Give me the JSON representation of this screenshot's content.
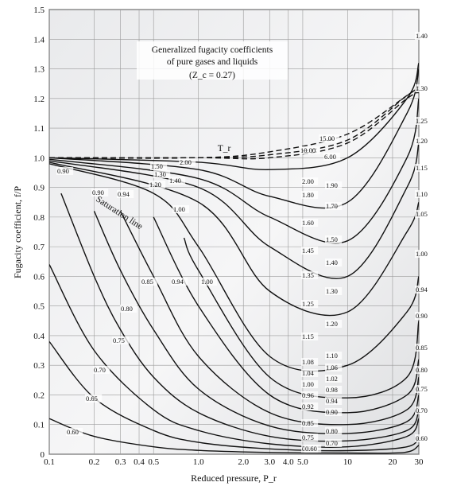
{
  "chart_data": {
    "type": "line",
    "title": "Generalized fugacity coefficients",
    "subtitle_line": "of pure gases and liquids",
    "zc_note": "(Z_c = 0.27)",
    "xlabel": "Reduced pressure, P_r",
    "ylabel": "Fugacity coefficient, f/P",
    "x_scale": "log",
    "xlim": [
      0.1,
      30
    ],
    "ylim": [
      0,
      1.5
    ],
    "grid": true,
    "x_ticks": [
      {
        "v": 0.1,
        "label": "0.1"
      },
      {
        "v": 0.2,
        "label": "0.2"
      },
      {
        "v": 0.3,
        "label": "0.3"
      },
      {
        "v": 0.4,
        "label": "0.4"
      },
      {
        "v": 0.5,
        "label": "0.5"
      },
      {
        "v": 1.0,
        "label": "1.0"
      },
      {
        "v": 2.0,
        "label": "2.0"
      },
      {
        "v": 3.0,
        "label": "3.0"
      },
      {
        "v": 4.0,
        "label": "4.0"
      },
      {
        "v": 5.0,
        "label": "5.0"
      },
      {
        "v": 10,
        "label": "10"
      },
      {
        "v": 20,
        "label": "20"
      },
      {
        "v": 30,
        "label": "30"
      }
    ],
    "y_ticks": [
      {
        "v": 0.0,
        "label": "0"
      },
      {
        "v": 0.1,
        "label": "0.1"
      },
      {
        "v": 0.2,
        "label": "0.2"
      },
      {
        "v": 0.3,
        "label": "0.3"
      },
      {
        "v": 0.4,
        "label": "0.4"
      },
      {
        "v": 0.5,
        "label": "0.5"
      },
      {
        "v": 0.6,
        "label": "0.6"
      },
      {
        "v": 0.7,
        "label": "0.7"
      },
      {
        "v": 0.8,
        "label": "0.8"
      },
      {
        "v": 0.9,
        "label": "0.9"
      },
      {
        "v": 1.0,
        "label": "1.0"
      },
      {
        "v": 1.1,
        "label": "1.1"
      },
      {
        "v": 1.2,
        "label": "1.2"
      },
      {
        "v": 1.3,
        "label": "1.3"
      },
      {
        "v": 1.4,
        "label": "1.4"
      },
      {
        "v": 1.5,
        "label": "1.5"
      }
    ],
    "annotations": {
      "tr_label": "T_r",
      "saturation_label": "Saturation line"
    },
    "series": [
      {
        "name": "0.60",
        "points": [
          [
            0.1,
            0.12
          ],
          [
            0.2,
            0.06
          ],
          [
            0.5,
            0.025
          ],
          [
            1,
            0.013
          ],
          [
            3,
            0.006
          ],
          [
            10,
            0.004
          ],
          [
            24,
            0.006
          ],
          [
            30,
            0.03
          ]
        ]
      },
      {
        "name": "0.65",
        "points": [
          [
            0.1,
            0.38
          ],
          [
            0.2,
            0.19
          ],
          [
            0.5,
            0.08
          ],
          [
            1,
            0.04
          ],
          [
            3,
            0.018
          ],
          [
            10,
            0.012
          ],
          [
            25,
            0.025
          ],
          [
            30,
            0.06
          ]
        ]
      },
      {
        "name": "0.70",
        "points": [
          [
            0.1,
            0.64
          ],
          [
            0.2,
            0.35
          ],
          [
            0.5,
            0.15
          ],
          [
            1,
            0.08
          ],
          [
            3,
            0.035
          ],
          [
            10,
            0.025
          ],
          [
            25,
            0.06
          ],
          [
            30,
            0.12
          ]
        ]
      },
      {
        "name": "0.75",
        "points": [
          [
            0.12,
            0.88
          ],
          [
            0.2,
            0.6
          ],
          [
            0.3,
            0.42
          ],
          [
            0.5,
            0.26
          ],
          [
            1,
            0.14
          ],
          [
            3,
            0.06
          ],
          [
            10,
            0.045
          ],
          [
            25,
            0.08
          ],
          [
            30,
            0.15
          ]
        ]
      },
      {
        "name": "0.80",
        "points": [
          [
            0.2,
            0.82
          ],
          [
            0.3,
            0.62
          ],
          [
            0.5,
            0.42
          ],
          [
            1,
            0.22
          ],
          [
            3,
            0.095
          ],
          [
            10,
            0.07
          ],
          [
            25,
            0.11
          ],
          [
            30,
            0.2
          ]
        ]
      },
      {
        "name": "0.85",
        "points": [
          [
            0.3,
            0.82
          ],
          [
            0.5,
            0.6
          ],
          [
            1,
            0.33
          ],
          [
            3,
            0.14
          ],
          [
            10,
            0.1
          ],
          [
            25,
            0.15
          ],
          [
            30,
            0.26
          ]
        ]
      },
      {
        "name": "0.90",
        "points": [
          [
            0.5,
            0.8
          ],
          [
            1,
            0.5
          ],
          [
            3,
            0.2
          ],
          [
            10,
            0.14
          ],
          [
            25,
            0.2
          ],
          [
            30,
            0.32
          ]
        ]
      },
      {
        "name": "0.94",
        "points": [
          [
            0.8,
            0.73
          ],
          [
            1,
            0.62
          ],
          [
            3,
            0.26
          ],
          [
            10,
            0.19
          ],
          [
            25,
            0.26
          ],
          [
            30,
            0.45
          ]
        ]
      },
      {
        "name": "1.00",
        "points": [
          [
            0.1,
            0.98
          ],
          [
            0.5,
            0.88
          ],
          [
            1,
            0.7
          ],
          [
            3,
            0.33
          ],
          [
            10,
            0.3
          ],
          [
            25,
            0.48
          ],
          [
            30,
            0.6
          ]
        ]
      },
      {
        "name": "1.10",
        "points": [
          [
            0.1,
            0.985
          ],
          [
            1,
            0.85
          ],
          [
            3,
            0.55
          ],
          [
            10,
            0.48
          ],
          [
            25,
            0.75
          ],
          [
            30,
            0.85
          ]
        ]
      },
      {
        "name": "1.20",
        "points": [
          [
            0.1,
            0.99
          ],
          [
            1,
            0.9
          ],
          [
            3,
            0.7
          ],
          [
            10,
            0.6
          ],
          [
            25,
            0.9
          ],
          [
            30,
            1.05
          ]
        ]
      },
      {
        "name": "1.30",
        "points": [
          [
            0.1,
            0.995
          ],
          [
            1,
            0.93
          ],
          [
            3,
            0.8
          ],
          [
            10,
            0.72
          ],
          [
            25,
            1.0
          ],
          [
            30,
            1.2
          ]
        ]
      },
      {
        "name": "1.50",
        "points": [
          [
            0.1,
            1.0
          ],
          [
            1,
            0.96
          ],
          [
            3,
            0.87
          ],
          [
            10,
            0.85
          ],
          [
            25,
            1.15
          ],
          [
            30,
            1.3
          ]
        ]
      },
      {
        "name": "2.00",
        "points": [
          [
            0.1,
            1.0
          ],
          [
            1,
            0.985
          ],
          [
            3,
            0.96
          ],
          [
            10,
            1.0
          ],
          [
            25,
            1.2
          ],
          [
            30,
            1.32
          ]
        ]
      },
      {
        "name": "6.00",
        "points": [
          [
            0.1,
            1.0
          ],
          [
            1,
            1.0
          ],
          [
            3,
            1.0
          ],
          [
            10,
            1.05
          ],
          [
            25,
            1.2
          ],
          [
            30,
            1.22
          ]
        ]
      },
      {
        "name": "10.00",
        "points": [
          [
            0.1,
            1.0
          ],
          [
            1,
            1.0
          ],
          [
            3,
            1.01
          ],
          [
            10,
            1.06
          ],
          [
            25,
            1.21
          ],
          [
            30,
            1.23
          ]
        ]
      },
      {
        "name": "15.00",
        "points": [
          [
            0.1,
            1.0
          ],
          [
            1,
            1.0
          ],
          [
            3,
            1.02
          ],
          [
            10,
            1.08
          ],
          [
            25,
            1.21
          ],
          [
            30,
            1.24
          ]
        ]
      }
    ],
    "left_curve_labels": [
      "0.90",
      "0.90",
      "0.94",
      "1.00",
      "0.85",
      "0.94",
      "1.00",
      "0.80",
      "0.75",
      "0.70",
      "0.65",
      "0.60",
      "0.60",
      "1.20",
      "1.50",
      "1.40",
      "1.30"
    ],
    "mid_curve_labels": [
      "2.00",
      "1.90",
      "1.80",
      "1.70",
      "1.60",
      "1.50",
      "1.45",
      "1.40",
      "1.35",
      "1.30",
      "1.25",
      "1.20",
      "1.15",
      "1.10",
      "1.08",
      "1.06",
      "1.04",
      "1.02",
      "1.00",
      "0.98",
      "0.96",
      "0.94",
      "0.92",
      "0.90",
      "0.85",
      "0.80",
      "0.75",
      "0.70",
      "0.60"
    ],
    "top_curve_labels": [
      "15.00",
      "10.00",
      "6.00",
      "2.00"
    ],
    "right_curve_labels": [
      "1.40",
      "1.30",
      "1.25",
      "1.20",
      "1.15",
      "1.10",
      "1.05",
      "1.00",
      "0.94",
      "0.90",
      "0.85",
      "0.80",
      "0.75",
      "0.70",
      "0.60"
    ]
  }
}
